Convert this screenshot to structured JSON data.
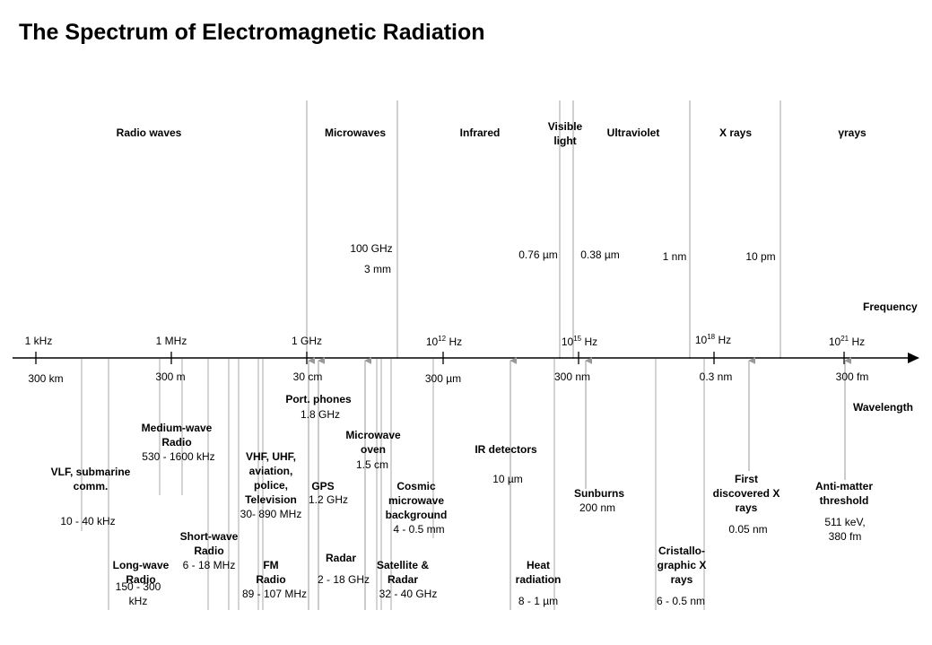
{
  "title": "The Spectrum of Electromagnetic Radiation",
  "bands": [
    {
      "name": "Radio waves"
    },
    {
      "name": "Microwaves"
    },
    {
      "name": "Infrared"
    },
    {
      "name": "Visible light"
    },
    {
      "name": "Ultraviolet"
    },
    {
      "name": "X rays"
    },
    {
      "name": "γrays"
    }
  ],
  "boundaries": {
    "microwave": [
      "100 GHz",
      "3 mm"
    ],
    "visible_red": "0.76 µm",
    "visible_violet": "0.38 µm",
    "xray_low": "1 nm",
    "xray_high": "10 pm"
  },
  "axis": {
    "frequency_label": "Frequency",
    "wavelength_label": "Wavelength",
    "frequency_ticks": [
      "1 kHz",
      "1 MHz",
      "1 GHz",
      "10^12 Hz",
      "10^15 Hz",
      "10^18 Hz",
      "10^21 Hz"
    ],
    "wavelength_ticks": [
      "300 km",
      "300 m",
      "30 cm",
      "300 µm",
      "300 nm",
      "0.3 nm",
      "300 fm"
    ]
  },
  "applications": [
    {
      "name": "VLF, submarine comm.",
      "value": "10 - 40 kHz"
    },
    {
      "name": "Long-wave Radio",
      "value": "150 - 300 kHz"
    },
    {
      "name": "Medium-wave Radio",
      "value": "530 - 1600 kHz"
    },
    {
      "name": "Short-wave Radio",
      "value": "6 - 18 MHz"
    },
    {
      "name": "VHF, UHF, aviation, police, Television",
      "value": "30- 890 MHz"
    },
    {
      "name": "FM Radio",
      "value": "89 - 107 MHz"
    },
    {
      "name": "GPS",
      "value": "1.2 GHz"
    },
    {
      "name": "Port. phones",
      "value": "1.8 GHz"
    },
    {
      "name": "Radar",
      "value": "2 - 18 GHz"
    },
    {
      "name": "Microwave oven",
      "value": "1.5 cm"
    },
    {
      "name": "Satellite & Radar",
      "value": "32 - 40 GHz"
    },
    {
      "name": "Cosmic microwave background",
      "value": "4 - 0.5 mm"
    },
    {
      "name": "IR detectors",
      "value": "10 µm"
    },
    {
      "name": "Heat radiation",
      "value": "8 - 1 µm"
    },
    {
      "name": "Sunburns",
      "value": "200 nm"
    },
    {
      "name": "Cristallo-graphic X rays",
      "value": "6 - 0.5 nm"
    },
    {
      "name": "First discovered X rays",
      "value": "0.05 nm"
    },
    {
      "name": "Anti-matter threshold",
      "value": "511 keV, 380 fm"
    }
  ]
}
